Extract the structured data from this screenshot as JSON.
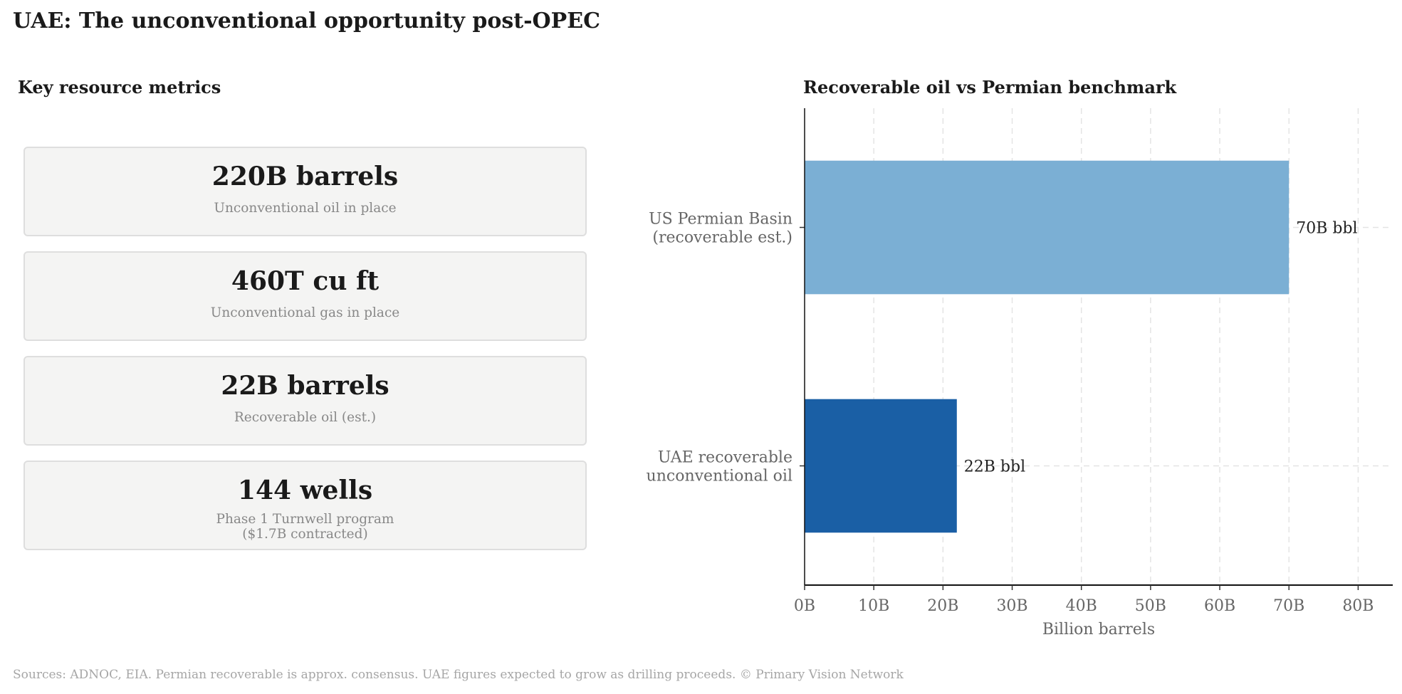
{
  "title": "UAE: The unconventional opportunity post-OPEC",
  "metrics_panel": {
    "title": "Key resource metrics",
    "cards": [
      {
        "value": "220B barrels",
        "label_lines": [
          "Unconventional oil in place"
        ]
      },
      {
        "value": "460T cu ft",
        "label_lines": [
          "Unconventional gas in place"
        ]
      },
      {
        "value": "22B barrels",
        "label_lines": [
          "Recoverable oil (est.)"
        ]
      },
      {
        "value": "144 wells",
        "label_lines": [
          "Phase 1 Turnwell program",
          "($1.7B contracted)"
        ]
      }
    ]
  },
  "chart_data": {
    "type": "bar",
    "orientation": "horizontal",
    "title": "Recoverable oil vs Permian benchmark",
    "xlabel": "Billion barrels",
    "ylabel": "",
    "categories": [
      [
        "US Permian Basin",
        "(recoverable est.)"
      ],
      [
        "UAE recoverable",
        "unconventional oil"
      ]
    ],
    "values": [
      70,
      22
    ],
    "data_labels": [
      "70B bbl",
      "22B bbl"
    ],
    "colors": [
      "#7bafd4",
      "#1a5fa5"
    ],
    "xlim": [
      0,
      85
    ],
    "xticks": [
      0,
      10,
      20,
      30,
      40,
      50,
      60,
      70,
      80
    ],
    "xtick_labels": [
      "0B",
      "10B",
      "20B",
      "30B",
      "40B",
      "50B",
      "60B",
      "70B",
      "80B"
    ],
    "grid": true
  },
  "footer": "Sources: ADNOC, EIA. Permian recoverable is approx. consensus. UAE figures expected to grow as drilling proceeds.  © Primary Vision Network"
}
